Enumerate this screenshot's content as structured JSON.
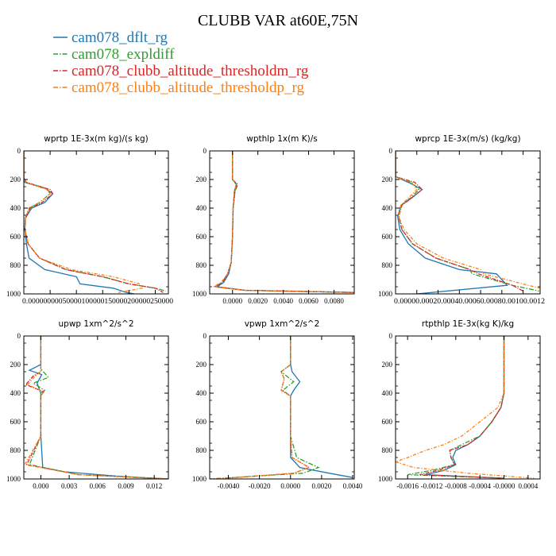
{
  "title": "CLUBB VAR at60E,75N",
  "colors": {
    "dflt": "#1f77b4",
    "expldiff": "#2ca02c",
    "thresholdm": "#d62728",
    "thresholdp": "#ff7f0e"
  },
  "legend": [
    {
      "label": "cam078_dflt_rg",
      "color": "#1f77b4",
      "dash": "solid"
    },
    {
      "label": "cam078_expldiff",
      "color": "#2ca02c",
      "dash": "dashdot"
    },
    {
      "label": "cam078_clubb_altitude_thresholdm_rg",
      "color": "#d62728",
      "dash": "dashdot"
    },
    {
      "label": "cam078_clubb_altitude_thresholdp_rg",
      "color": "#ff7f0e",
      "dash": "dashdot"
    }
  ],
  "chart_data": [
    {
      "type": "line",
      "title": "wprtp  1E-3x(m kg)/(s kg)",
      "xlim": [
        0,
        0.000275
      ],
      "ylim": [
        1000,
        0
      ],
      "xticks": [
        "0.00000",
        "0.00005",
        "0.00010",
        "0.00015",
        "0.00020",
        "0.00025"
      ],
      "xtick_values": [
        0,
        5e-05,
        0.0001,
        0.00015,
        0.0002,
        0.00025
      ],
      "xtick_label": "0.00000000050000100000150000200000250000",
      "yticks": [
        "0",
        "200",
        "400",
        "600",
        "800",
        "1000"
      ],
      "ytick_values": [
        0,
        200,
        400,
        600,
        800,
        1000
      ],
      "series": [
        {
          "name": "cam078_dflt_rg",
          "x": [
            0,
            0,
            2e-06,
            4e-05,
            5.5e-05,
            4e-05,
            1.5e-05,
            3e-06,
            2e-06,
            5e-06,
            1e-05,
            4e-05,
            0.0001,
            0.000107,
            0.00017,
            0.000195,
            0.00021
          ],
          "y": [
            0,
            190,
            220,
            260,
            300,
            360,
            400,
            470,
            550,
            650,
            750,
            830,
            880,
            930,
            960,
            990,
            1000
          ]
        },
        {
          "name": "cam078_expldiff",
          "x": [
            0,
            0,
            3e-06,
            4.5e-05,
            5e-05,
            3e-05,
            1e-05,
            3e-06,
            2e-06,
            8e-06,
            3e-05,
            8e-05,
            0.00015,
            0.0002,
            0.00025,
            0.00027
          ],
          "y": [
            0,
            190,
            220,
            270,
            300,
            360,
            400,
            470,
            550,
            650,
            750,
            830,
            880,
            930,
            960,
            980
          ]
        },
        {
          "name": "cam078_clubb_altitude_thresholdm_rg",
          "x": [
            0,
            0,
            5e-06,
            5e-05,
            5.5e-05,
            3.5e-05,
            1.2e-05,
            3e-06,
            2e-06,
            8e-06,
            3e-05,
            8e-05,
            0.00015,
            0.0002,
            0.00025,
            0.000265
          ],
          "y": [
            0,
            190,
            220,
            270,
            300,
            360,
            400,
            470,
            550,
            650,
            750,
            830,
            880,
            930,
            960,
            990
          ]
        },
        {
          "name": "cam078_clubb_altitude_thresholdp_rg",
          "x": [
            0,
            0,
            4e-06,
            4.5e-05,
            5e-05,
            3e-05,
            1e-05,
            3e-06,
            2e-06,
            8e-06,
            3e-05,
            9e-05,
            0.00017,
            0.00022,
            0.000225,
            0.00018
          ],
          "y": [
            0,
            190,
            220,
            270,
            300,
            360,
            400,
            470,
            550,
            650,
            750,
            830,
            880,
            930,
            960,
            990
          ]
        }
      ]
    },
    {
      "type": "line",
      "title": "wpthlp  1x(m K)/s",
      "xlim": [
        -0.0018,
        0.0096
      ],
      "ylim": [
        1000,
        0
      ],
      "xticks": [
        "0.0000",
        "0.0020",
        "0.0040",
        "0.0060",
        "0.0080"
      ],
      "xtick_values": [
        0,
        0.002,
        0.004,
        0.006,
        0.008
      ],
      "yticks": [
        "0",
        "200",
        "400",
        "600",
        "800",
        "1000"
      ],
      "ytick_values": [
        0,
        200,
        400,
        600,
        800,
        1000
      ],
      "series": [
        {
          "name": "cam078_dflt_rg",
          "x": [
            0,
            0,
            0.0003,
            0.00015,
            5e-05,
            0,
            -0.0001,
            -0.0003,
            -0.0007,
            -0.0012,
            0.001,
            0.0096
          ],
          "y": [
            0,
            200,
            235,
            280,
            400,
            600,
            780,
            860,
            920,
            950,
            975,
            990
          ]
        },
        {
          "name": "cam078_expldiff",
          "x": [
            0,
            0,
            0.0004,
            0.0002,
            5e-05,
            0,
            -0.0001,
            -0.0004,
            -0.0008,
            -0.0014,
            0.001,
            0.0096
          ],
          "y": [
            0,
            200,
            235,
            280,
            400,
            600,
            780,
            860,
            920,
            950,
            975,
            990
          ]
        },
        {
          "name": "cam078_clubb_altitude_thresholdm_rg",
          "x": [
            0,
            0,
            0.0004,
            0.0002,
            5e-05,
            0,
            -0.0001,
            -0.0004,
            -0.0008,
            -0.0014,
            0.001,
            0.0096
          ],
          "y": [
            0,
            200,
            235,
            280,
            400,
            600,
            780,
            860,
            920,
            950,
            975,
            990
          ]
        },
        {
          "name": "cam078_clubb_altitude_thresholdp_rg",
          "x": [
            0,
            0,
            0.0003,
            0.00015,
            5e-05,
            0,
            -0.0001,
            -0.0004,
            -0.0009,
            -0.0015,
            0.001,
            0.0096
          ],
          "y": [
            0,
            200,
            235,
            280,
            400,
            600,
            780,
            860,
            920,
            950,
            975,
            990
          ]
        }
      ]
    },
    {
      "type": "line",
      "title": "wprcp  1E-3x(m/s) (kg/kg)",
      "xlim": [
        0,
        0.00136
      ],
      "ylim": [
        1000,
        0
      ],
      "xticks": [
        "0.0000",
        "0.0002",
        "0.0004",
        "0.0006",
        "0.0008",
        "0.0010",
        "0.0012"
      ],
      "xtick_values": [
        0,
        0.0002,
        0.0004,
        0.0006,
        0.0008,
        0.001,
        0.0012
      ],
      "xtick_label": "0.00000.00020.00040.00060.00080.00100.0012",
      "yticks": [
        "0",
        "200",
        "400",
        "600",
        "800",
        "1000"
      ],
      "ytick_values": [
        0,
        200,
        400,
        600,
        800,
        1000
      ],
      "series": [
        {
          "name": "cam078_dflt_rg",
          "x": [
            0,
            0,
            0.00012,
            0.00025,
            0.00015,
            5e-05,
            2e-05,
            4e-05,
            0.00012,
            0.00028,
            0.0006,
            0.00095,
            0.00105,
            0.0002
          ],
          "y": [
            0,
            180,
            220,
            270,
            330,
            380,
            460,
            550,
            650,
            750,
            830,
            860,
            940,
            1000
          ]
        },
        {
          "name": "cam078_expldiff",
          "x": [
            0,
            0,
            0.00015,
            0.00022,
            0.00014,
            5e-05,
            3e-05,
            6e-05,
            0.00016,
            0.00038,
            0.0007,
            0.00072,
            0.0011,
            0.00135
          ],
          "y": [
            0,
            180,
            220,
            270,
            330,
            380,
            460,
            550,
            650,
            750,
            830,
            860,
            940,
            980
          ]
        },
        {
          "name": "cam078_clubb_altitude_thresholdm_rg",
          "x": [
            0,
            0,
            0.00018,
            0.00025,
            0.00015,
            6e-05,
            3e-05,
            6e-05,
            0.00016,
            0.00038,
            0.0007,
            0.00078,
            0.0011,
            0.0012
          ],
          "y": [
            0,
            180,
            220,
            270,
            330,
            380,
            460,
            550,
            650,
            750,
            830,
            860,
            940,
            980
          ]
        },
        {
          "name": "cam078_clubb_altitude_thresholdp_rg",
          "x": [
            0,
            0,
            0.00015,
            0.0002,
            0.00012,
            5e-05,
            3e-05,
            8e-05,
            0.0002,
            0.00045,
            0.0008,
            0.00083,
            0.00125,
            0.00136
          ],
          "y": [
            0,
            180,
            220,
            270,
            330,
            380,
            460,
            550,
            650,
            750,
            830,
            860,
            940,
            960
          ]
        }
      ]
    },
    {
      "type": "line",
      "title": "upwp  1xm^2/s^2",
      "xlim": [
        -0.0018,
        0.0135
      ],
      "ylim": [
        1000,
        0
      ],
      "xticks": [
        "0.000",
        "0.003",
        "0.006",
        "0.009",
        "0.012"
      ],
      "xtick_values": [
        0,
        0.003,
        0.006,
        0.009,
        0.012
      ],
      "yticks": [
        "0",
        "200",
        "400",
        "600",
        "800",
        "1000"
      ],
      "ytick_values": [
        0,
        200,
        400,
        600,
        800,
        1000
      ],
      "series": [
        {
          "name": "cam078_dflt_rg",
          "x": [
            0,
            0,
            -0.0012,
            0.0001,
            -0.0004,
            0,
            0,
            0.0002,
            0.0025,
            0.008,
            0.0135
          ],
          "y": [
            0,
            200,
            240,
            270,
            330,
            400,
            700,
            920,
            950,
            980,
            1000
          ]
        },
        {
          "name": "cam078_expldiff",
          "x": [
            0,
            0,
            0.0008,
            -0.0008,
            0.0004,
            0,
            0,
            -0.0012,
            0.004,
            0.0135
          ],
          "y": [
            0,
            230,
            290,
            330,
            380,
            400,
            700,
            900,
            970,
            1000
          ]
        },
        {
          "name": "cam078_clubb_altitude_thresholdm_rg",
          "x": [
            0,
            0,
            -0.0008,
            -0.0016,
            0.0003,
            0,
            0,
            -0.0015,
            0.004,
            0.0135
          ],
          "y": [
            0,
            250,
            280,
            340,
            390,
            420,
            700,
            900,
            970,
            1000
          ]
        },
        {
          "name": "cam078_clubb_altitude_thresholdp_rg",
          "x": [
            0,
            0,
            -0.0006,
            -0.0014,
            0.0003,
            0,
            0,
            -0.0017,
            0.004,
            0.0135
          ],
          "y": [
            0,
            250,
            280,
            340,
            390,
            420,
            700,
            900,
            970,
            1000
          ]
        }
      ]
    },
    {
      "type": "line",
      "title": "vpwp  1xm^2/s^2",
      "xlim": [
        -0.0052,
        0.0041
      ],
      "ylim": [
        1000,
        0
      ],
      "xticks": [
        "-0.0040",
        "-0.0020",
        "0.0000",
        "0.0020",
        "0.0040"
      ],
      "xtick_values": [
        -0.004,
        -0.002,
        0,
        0.002,
        0.004
      ],
      "yticks": [
        "0",
        "200",
        "400",
        "600",
        "800",
        "1000"
      ],
      "ytick_values": [
        0,
        200,
        400,
        600,
        800,
        1000
      ],
      "series": [
        {
          "name": "cam078_dflt_rg",
          "x": [
            0,
            0,
            0.0001,
            0.0006,
            0.0002,
            0,
            0,
            0,
            0.0006,
            0.0025,
            0.004
          ],
          "y": [
            0,
            200,
            250,
            320,
            380,
            420,
            700,
            850,
            920,
            960,
            990
          ]
        },
        {
          "name": "cam078_expldiff",
          "x": [
            0,
            0,
            -0.0006,
            0.0002,
            -0.0005,
            0,
            0,
            0.0004,
            0.0018,
            0.0008,
            -0.0052
          ],
          "y": [
            0,
            200,
            250,
            320,
            380,
            420,
            700,
            850,
            920,
            960,
            1000
          ]
        },
        {
          "name": "cam078_clubb_altitude_thresholdm_rg",
          "x": [
            0,
            0,
            -0.0006,
            -0.0004,
            -0.0006,
            0,
            0,
            0.0001,
            0.0012,
            0.0002,
            -0.0048
          ],
          "y": [
            0,
            200,
            250,
            300,
            380,
            420,
            700,
            850,
            920,
            960,
            1000
          ]
        },
        {
          "name": "cam078_clubb_altitude_thresholdp_rg",
          "x": [
            0,
            0,
            -0.0006,
            -0.0004,
            -0.0006,
            0,
            0,
            0.0001,
            0.0012,
            0.0002,
            -0.0048
          ],
          "y": [
            0,
            200,
            250,
            300,
            380,
            420,
            700,
            850,
            920,
            960,
            1000
          ]
        }
      ]
    },
    {
      "type": "line",
      "title": "rtpthlp  1E-3x(kg K)/kg",
      "xlim": [
        -0.0018,
        0.0006
      ],
      "ylim": [
        1000,
        0
      ],
      "xticks": [
        "-0.0016",
        "-0.0012",
        "-0.0008",
        "-0.0004",
        "-0.0000",
        "0.0004"
      ],
      "xtick_values": [
        -0.0016,
        -0.0012,
        -0.0008,
        -0.0004,
        0,
        0.0004
      ],
      "yticks": [
        "0",
        "200",
        "400",
        "600",
        "800",
        "1000"
      ],
      "ytick_values": [
        0,
        200,
        400,
        600,
        800,
        1000
      ],
      "series": [
        {
          "name": "cam078_dflt_rg",
          "x": [
            0,
            0,
            0,
            -5e-05,
            -0.0002,
            -0.0004,
            -0.0006,
            -0.0008,
            -0.00085,
            -0.0008,
            -0.001,
            -0.0013,
            0
          ],
          "y": [
            0,
            300,
            400,
            500,
            600,
            700,
            760,
            800,
            850,
            900,
            940,
            970,
            995
          ]
        },
        {
          "name": "cam078_expldiff",
          "x": [
            0,
            0,
            0,
            -5e-05,
            -0.0002,
            -0.0004,
            -0.0007,
            -0.0009,
            -0.00088,
            -0.00082,
            -0.0012,
            -0.0016,
            0
          ],
          "y": [
            0,
            300,
            400,
            500,
            600,
            700,
            760,
            800,
            850,
            900,
            940,
            970,
            995
          ]
        },
        {
          "name": "cam078_clubb_altitude_thresholdm_rg",
          "x": [
            0,
            0,
            0,
            -5e-05,
            -0.0002,
            -0.0004,
            -0.0006,
            -0.0009,
            -0.00088,
            -0.00082,
            -0.0011,
            -0.0014,
            0
          ],
          "y": [
            0,
            300,
            400,
            500,
            600,
            700,
            760,
            800,
            850,
            900,
            940,
            970,
            995
          ]
        },
        {
          "name": "cam078_clubb_altitude_thresholdp_rg",
          "x": [
            0,
            0,
            0,
            -0.0001,
            -0.0004,
            -0.0007,
            -0.001,
            -0.0013,
            -0.0016,
            -0.0018,
            -0.0015,
            -0.0006,
            0.0005
          ],
          "y": [
            0,
            300,
            400,
            500,
            600,
            700,
            760,
            800,
            850,
            880,
            920,
            960,
            995
          ]
        }
      ]
    }
  ]
}
